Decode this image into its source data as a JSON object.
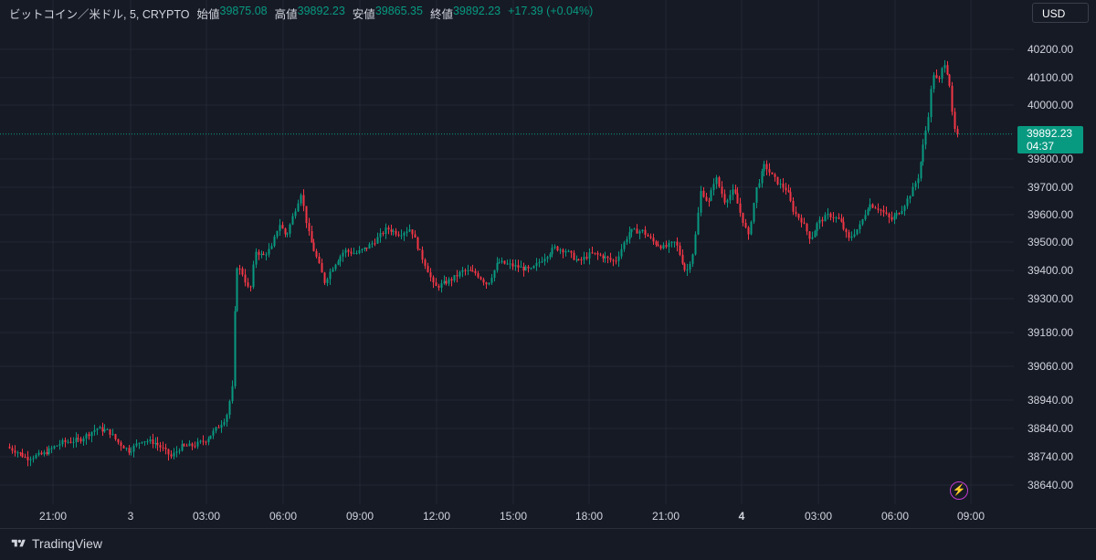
{
  "legend": {
    "symbol": "ビットコイン／米ドル, 5, CRYPTO",
    "open_label": "始値",
    "open": "39875.08",
    "high_label": "高値",
    "high": "39892.23",
    "low_label": "安値",
    "low": "39865.35",
    "close_label": "終値",
    "close": "39892.23",
    "change": "+17.39 (+0.04%)"
  },
  "currency_button": "USD",
  "price_tag": {
    "price": "39892.23",
    "countdown": "04:37"
  },
  "footer": {
    "brand": "TradingView"
  },
  "colors": {
    "up": "#089981",
    "down": "#f23645",
    "background": "#161a25",
    "grid": "#232733"
  },
  "icons": {
    "bolt": "lightning-bolt-icon",
    "logo": "tradingview-logo-icon"
  },
  "chart_data": {
    "type": "candlestick",
    "y_ticks": [
      "40200.00",
      "40100.00",
      "40000.00",
      "39800.00",
      "39700.00",
      "39600.00",
      "39500.00",
      "39400.00",
      "39300.00",
      "39180.00",
      "39060.00",
      "38940.00",
      "38840.00",
      "38740.00",
      "38640.00"
    ],
    "x_ticks": [
      "21:00",
      "3",
      "03:00",
      "06:00",
      "09:00",
      "12:00",
      "15:00",
      "18:00",
      "21:00",
      "4",
      "03:00",
      "06:00",
      "09:00"
    ],
    "last_price": 39892.23,
    "series_path": [
      [
        0,
        38790
      ],
      [
        20,
        38760
      ],
      [
        32,
        38735
      ],
      [
        50,
        38750
      ],
      [
        70,
        38790
      ],
      [
        90,
        38800
      ],
      [
        108,
        38840
      ],
      [
        122,
        38830
      ],
      [
        132,
        38790
      ],
      [
        144,
        38760
      ],
      [
        158,
        38800
      ],
      [
        172,
        38790
      ],
      [
        180,
        38770
      ],
      [
        190,
        38740
      ],
      [
        200,
        38775
      ],
      [
        215,
        38780
      ],
      [
        228,
        38800
      ],
      [
        240,
        38840
      ],
      [
        250,
        38880
      ],
      [
        257,
        38990
      ],
      [
        261,
        39420
      ],
      [
        268,
        39390
      ],
      [
        276,
        39320
      ],
      [
        282,
        39470
      ],
      [
        290,
        39450
      ],
      [
        300,
        39480
      ],
      [
        308,
        39570
      ],
      [
        316,
        39520
      ],
      [
        326,
        39620
      ],
      [
        332,
        39680
      ],
      [
        338,
        39570
      ],
      [
        342,
        39510
      ],
      [
        350,
        39440
      ],
      [
        358,
        39360
      ],
      [
        368,
        39420
      ],
      [
        380,
        39470
      ],
      [
        392,
        39460
      ],
      [
        404,
        39480
      ],
      [
        412,
        39500
      ],
      [
        426,
        39550
      ],
      [
        440,
        39530
      ],
      [
        452,
        39550
      ],
      [
        460,
        39480
      ],
      [
        470,
        39410
      ],
      [
        478,
        39340
      ],
      [
        486,
        39350
      ],
      [
        498,
        39370
      ],
      [
        510,
        39400
      ],
      [
        524,
        39390
      ],
      [
        536,
        39350
      ],
      [
        548,
        39430
      ],
      [
        560,
        39420
      ],
      [
        572,
        39410
      ],
      [
        584,
        39400
      ],
      [
        596,
        39440
      ],
      [
        610,
        39480
      ],
      [
        622,
        39470
      ],
      [
        636,
        39430
      ],
      [
        650,
        39460
      ],
      [
        662,
        39450
      ],
      [
        676,
        39430
      ],
      [
        692,
        39540
      ],
      [
        706,
        39540
      ],
      [
        718,
        39500
      ],
      [
        730,
        39480
      ],
      [
        742,
        39500
      ],
      [
        754,
        39390
      ],
      [
        762,
        39470
      ],
      [
        770,
        39690
      ],
      [
        778,
        39640
      ],
      [
        786,
        39740
      ],
      [
        796,
        39650
      ],
      [
        806,
        39690
      ],
      [
        814,
        39600
      ],
      [
        822,
        39520
      ],
      [
        830,
        39690
      ],
      [
        840,
        39780
      ],
      [
        848,
        39740
      ],
      [
        856,
        39710
      ],
      [
        864,
        39690
      ],
      [
        872,
        39610
      ],
      [
        880,
        39580
      ],
      [
        890,
        39510
      ],
      [
        898,
        39570
      ],
      [
        910,
        39600
      ],
      [
        922,
        39580
      ],
      [
        932,
        39510
      ],
      [
        944,
        39560
      ],
      [
        954,
        39640
      ],
      [
        966,
        39620
      ],
      [
        978,
        39580
      ],
      [
        990,
        39620
      ],
      [
        1000,
        39680
      ],
      [
        1008,
        39740
      ],
      [
        1014,
        39860
      ],
      [
        1020,
        39980
      ],
      [
        1024,
        40120
      ],
      [
        1030,
        40080
      ],
      [
        1036,
        40160
      ],
      [
        1042,
        40090
      ],
      [
        1046,
        39940
      ],
      [
        1050,
        39880
      ]
    ]
  }
}
